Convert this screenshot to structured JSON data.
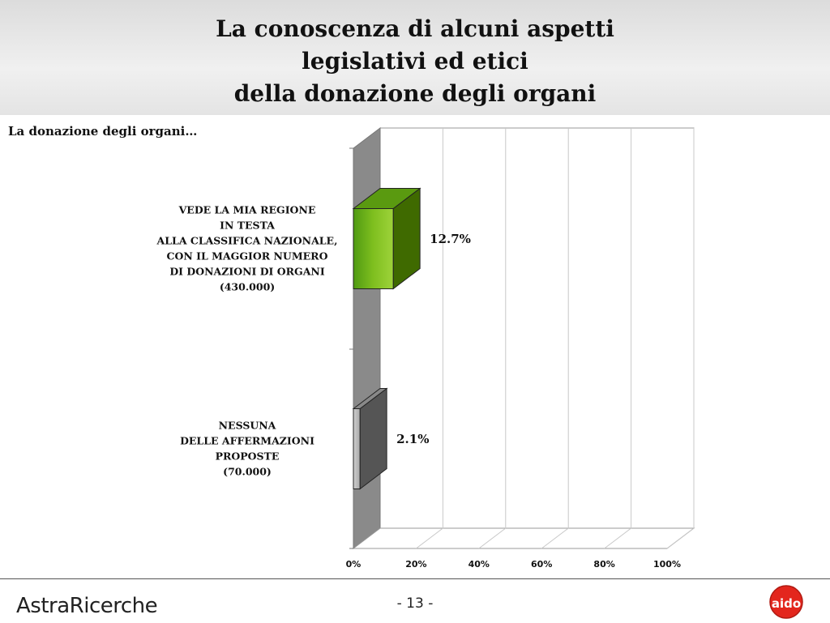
{
  "header": {
    "title_lines": [
      "La conoscenza di alcuni aspetti",
      "legislativi ed etici",
      "della donazione degli organi"
    ]
  },
  "subtitle": "La donazione degli organi…",
  "chart_data": {
    "type": "bar",
    "orientation": "horizontal",
    "style": "3d",
    "categories": [
      [
        "VEDE LA MIA REGIONE",
        "IN TESTA",
        "ALLA CLASSIFICA NAZIONALE,",
        "CON IL MAGGIOR NUMERO",
        "DI DONAZIONI DI ORGANI",
        "(430.000)"
      ],
      [
        "NESSUNA",
        "DELLE AFFERMAZIONI",
        "PROPOSTE",
        "(70.000)"
      ]
    ],
    "values": [
      12.7,
      2.1
    ],
    "value_labels": [
      "12.7%",
      "2.1%"
    ],
    "xlim": [
      0,
      100
    ],
    "xticks": [
      "0%",
      "20%",
      "40%",
      "60%",
      "80%",
      "100%"
    ],
    "grid": true,
    "colors": {
      "bar1": "#7fbf1f",
      "bar1_side": "#3f6a00",
      "bar1_top": "#5a9a10",
      "bar2": "#aaaaaa",
      "bar2_side": "#555555",
      "bar2_top": "#888888",
      "wall": "#8a8a8a"
    }
  },
  "footer": {
    "logo_left": "AstraRicerche",
    "page_number": "- 13 -",
    "logo_right": "aido"
  }
}
